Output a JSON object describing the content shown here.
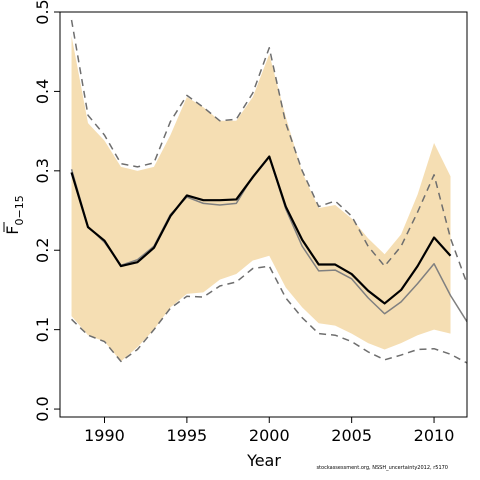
{
  "chart_data": {
    "type": "line",
    "xlabel": "Year",
    "ylabel": "F",
    "ylabel_subscript": "0−15",
    "xlim": [
      1987.3,
      2012.0
    ],
    "ylim": [
      -0.01,
      0.5
    ],
    "x_ticks": [
      1990,
      1995,
      2000,
      2005,
      2010
    ],
    "y_ticks": [
      0.0,
      0.1,
      0.2,
      0.3,
      0.4,
      0.5
    ],
    "x_tick_labels": [
      "1990",
      "1995",
      "2000",
      "2005",
      "2010"
    ],
    "y_tick_labels": [
      "0.0",
      "0.1",
      "0.2",
      "0.3",
      "0.4",
      "0.5"
    ],
    "grid": false,
    "band": {
      "color": "#f5deb3",
      "x": [
        1988,
        1989,
        1990,
        1991,
        1992,
        1993,
        1994,
        1995,
        1996,
        1997,
        1998,
        1999,
        2000,
        2001,
        2002,
        2003,
        2004,
        2005,
        2006,
        2007,
        2008,
        2009,
        2010,
        2011
      ],
      "upper": [
        0.47,
        0.36,
        0.338,
        0.305,
        0.3,
        0.305,
        0.345,
        0.393,
        0.38,
        0.363,
        0.363,
        0.393,
        0.447,
        0.368,
        0.298,
        0.253,
        0.257,
        0.24,
        0.215,
        0.195,
        0.22,
        0.27,
        0.335,
        0.293
      ],
      "lower": [
        0.117,
        0.093,
        0.085,
        0.06,
        0.078,
        0.1,
        0.128,
        0.145,
        0.147,
        0.163,
        0.17,
        0.187,
        0.193,
        0.153,
        0.128,
        0.108,
        0.105,
        0.095,
        0.083,
        0.075,
        0.083,
        0.093,
        0.1,
        0.095
      ]
    },
    "series": [
      {
        "role": "estimate",
        "color": "#000000",
        "style": "solid",
        "x": [
          1988,
          1989,
          1990,
          1991,
          1992,
          1993,
          1994,
          1995,
          1996,
          1997,
          1998,
          1999,
          2000,
          2001,
          2002,
          2003,
          2004,
          2005,
          2006,
          2007,
          2008,
          2009,
          2010,
          2011
        ],
        "values": [
          0.298,
          0.229,
          0.212,
          0.18,
          0.185,
          0.203,
          0.243,
          0.269,
          0.263,
          0.263,
          0.264,
          0.292,
          0.318,
          0.255,
          0.213,
          0.182,
          0.182,
          0.17,
          0.149,
          0.133,
          0.15,
          0.18,
          0.216,
          0.193
        ]
      },
      {
        "role": "comparison",
        "color": "#808080",
        "style": "solid",
        "x": [
          1988,
          1989,
          1990,
          1991,
          1992,
          1993,
          1994,
          1995,
          1996,
          1997,
          1998,
          1999,
          2000,
          2001,
          2002,
          2003,
          2004,
          2005,
          2006,
          2007,
          2008,
          2009,
          2010,
          2011,
          2012
        ],
        "values": [
          0.302,
          0.23,
          0.21,
          0.181,
          0.188,
          0.205,
          0.245,
          0.267,
          0.259,
          0.257,
          0.259,
          0.293,
          0.318,
          0.252,
          0.205,
          0.174,
          0.175,
          0.164,
          0.14,
          0.12,
          0.135,
          0.158,
          0.183,
          0.143,
          0.11
        ]
      },
      {
        "role": "upper-dashed",
        "color": "#6e6e6e",
        "style": "dashed",
        "x": [
          1988,
          1989,
          1990,
          1991,
          1992,
          1993,
          1994,
          1995,
          1996,
          1997,
          1998,
          1999,
          2000,
          2001,
          2002,
          2003,
          2004,
          2005,
          2006,
          2007,
          2008,
          2009,
          2010,
          2011,
          2012
        ],
        "values": [
          0.49,
          0.37,
          0.345,
          0.309,
          0.305,
          0.31,
          0.362,
          0.395,
          0.38,
          0.363,
          0.365,
          0.398,
          0.455,
          0.36,
          0.3,
          0.255,
          0.262,
          0.243,
          0.205,
          0.18,
          0.205,
          0.248,
          0.295,
          0.215,
          0.158
        ]
      },
      {
        "role": "lower-dashed",
        "color": "#6e6e6e",
        "style": "dashed",
        "x": [
          1988,
          1989,
          1990,
          1991,
          1992,
          1993,
          1994,
          1995,
          1996,
          1997,
          1998,
          1999,
          2000,
          2001,
          2002,
          2003,
          2004,
          2005,
          2006,
          2007,
          2008,
          2009,
          2010,
          2011,
          2012
        ],
        "values": [
          0.113,
          0.093,
          0.085,
          0.06,
          0.075,
          0.1,
          0.127,
          0.142,
          0.141,
          0.155,
          0.16,
          0.177,
          0.18,
          0.14,
          0.115,
          0.095,
          0.093,
          0.085,
          0.072,
          0.062,
          0.068,
          0.075,
          0.076,
          0.069,
          0.058
        ]
      }
    ]
  },
  "footer_text": "stockassessment.org, NSSH_uncertainty2012, r5170"
}
